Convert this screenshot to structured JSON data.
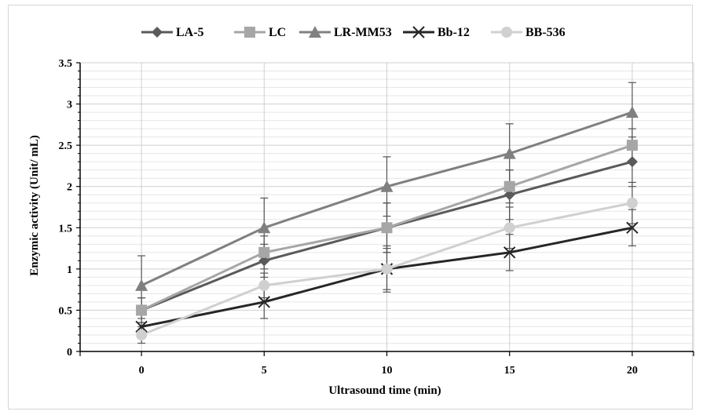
{
  "chart_data": {
    "type": "line",
    "title": "",
    "xlabel": "Ultrasound time (min)",
    "ylabel": "Enzymic activity (Unit/ mL)",
    "x": [
      0,
      5,
      10,
      15,
      20
    ],
    "x_ticks": [
      "0",
      "5",
      "10",
      "15",
      "20"
    ],
    "xlim": [
      -2.5,
      22.5
    ],
    "ylim": [
      0,
      3.5
    ],
    "y_ticks": [
      "0",
      "0.5",
      "1",
      "1.5",
      "2",
      "2.5",
      "3",
      "3.5"
    ],
    "grid": "major vertical lines at x ticks; minor horizontal lines every 0.1",
    "legend_position": "top",
    "error_bars": true,
    "series": [
      {
        "name": "LA-5",
        "marker": "diamond",
        "color": "#5a5a5a",
        "values": [
          0.5,
          1.1,
          1.5,
          1.9,
          2.3
        ],
        "errors": [
          0.15,
          0.2,
          0.3,
          0.3,
          0.3
        ]
      },
      {
        "name": "LC",
        "marker": "square",
        "color": "#a6a6a6",
        "values": [
          0.5,
          1.2,
          1.5,
          2.0,
          2.5
        ],
        "errors": [
          0.15,
          0.2,
          0.3,
          0.2,
          0.2
        ]
      },
      {
        "name": "LR-MM53",
        "marker": "triangle",
        "color": "#808080",
        "values": [
          0.8,
          1.5,
          2.0,
          2.4,
          2.9
        ],
        "errors": [
          0.36,
          0.36,
          0.36,
          0.36,
          0.36
        ]
      },
      {
        "name": "Bb-12",
        "marker": "x",
        "color": "#262626",
        "values": [
          0.3,
          0.6,
          1.0,
          1.2,
          1.5
        ],
        "errors": [
          0.1,
          0.2,
          0.28,
          0.22,
          0.22
        ]
      },
      {
        "name": "BB-536",
        "marker": "circle",
        "color": "#d0d0d0",
        "values": [
          0.2,
          0.8,
          1.0,
          1.5,
          1.8
        ],
        "errors": [
          0.1,
          0.15,
          0.25,
          0.25,
          0.25
        ]
      }
    ]
  }
}
